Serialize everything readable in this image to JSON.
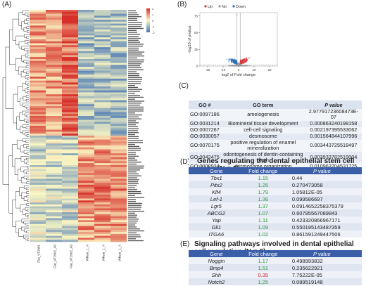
{
  "panel_labels": {
    "a": "(A)",
    "b": "(B)",
    "c": "(C)",
    "d": "(D)",
    "e": "(E)"
  },
  "heatmap": {
    "legend_ticks": [
      "2",
      "1",
      "0",
      "-1",
      "-2"
    ],
    "colors": {
      "high": "#d7302a",
      "mid": "#fbf7c4",
      "low": "#4575b4"
    },
    "columns": [
      "Flat_VT2001",
      "Flat_VT2002_A0",
      "Flat_VT2002_A0",
      "Wheat_1_A",
      "Wheat_1_A",
      "Wheat_1_A"
    ]
  },
  "chart_data": {
    "type": "scatter",
    "legend": [
      "Up",
      "No",
      "Down"
    ],
    "colors": {
      "Up": "#d93a3a",
      "No": "#9a9a9a",
      "Down": "#2c6fb6"
    },
    "xlabel": "log2 of Fold change",
    "ylabel": "-log10 of pvalue",
    "xticks": [
      -20,
      -10,
      0,
      10,
      20
    ],
    "yticks": [
      0,
      25,
      50,
      75
    ],
    "xlim": [
      -25,
      25
    ],
    "ylim": [
      0,
      80
    ]
  },
  "go_table": {
    "headers": [
      "GO #",
      "GO term",
      "P value"
    ],
    "rows": [
      [
        "GO:0097186",
        "amelogenesis",
        "2.97791723608473E-07"
      ],
      [
        "GO:0031214",
        "Biomineral tissue development",
        "0.000863240198158"
      ],
      [
        "GO:0007267",
        "cell-cell signaling",
        "0.002197395533062"
      ],
      [
        "GO:0030057",
        "desmosome",
        "0.001564844107996"
      ],
      [
        "GO:0070175",
        "positive regulation of enamel mineralization",
        "0.003443725518497"
      ],
      [
        "GO:0042475",
        "odontogenesis of dentin-containing tooth",
        "0.003933782519004"
      ],
      [
        "GO:0002934",
        "desmosome organization",
        "0.010963704531725"
      ]
    ]
  },
  "niche_table": {
    "title": "Genes regulating the dental epithelial stem cell niche (N = 3)",
    "headers": [
      "Gene",
      "Fold change",
      "P value"
    ],
    "rows": [
      [
        "Tbx1",
        "1.15",
        "0.44",
        "up"
      ],
      [
        "Pitx2",
        "1.25",
        "0.270473058",
        "up"
      ],
      [
        "Klf4",
        "1.79",
        "1.05812E-05",
        "up"
      ],
      [
        "Lef-1",
        "1.36",
        "0.099586697",
        "up"
      ],
      [
        "Lgr5",
        "1.37",
        "0.0914652258375379",
        "up"
      ],
      [
        "ABCG2",
        "1.07",
        "0.60785567089843",
        "up"
      ],
      [
        "Yap",
        "1.11",
        "0.423320866967171",
        "up"
      ],
      [
        "Gli1",
        "1.09",
        "0.550195143487359",
        "up"
      ],
      [
        "ITGA6",
        "1.02",
        "0.861591249447506",
        "up"
      ]
    ]
  },
  "pathway_table": {
    "title": "Signaling pathways involved in dental epithelial cell regulation (N = 3)",
    "headers": [
      "Gene",
      "Fold change",
      "P value"
    ],
    "rows": [
      [
        "Noggin",
        "1.17",
        "0.498993832",
        "up"
      ],
      [
        "Bmp4",
        "1.51",
        "0.235622921",
        "up"
      ],
      [
        "Shh",
        "0.35",
        "7.75222E-05",
        "down"
      ],
      [
        "Notch2",
        "1.25",
        "0.089519148",
        "up"
      ]
    ]
  }
}
